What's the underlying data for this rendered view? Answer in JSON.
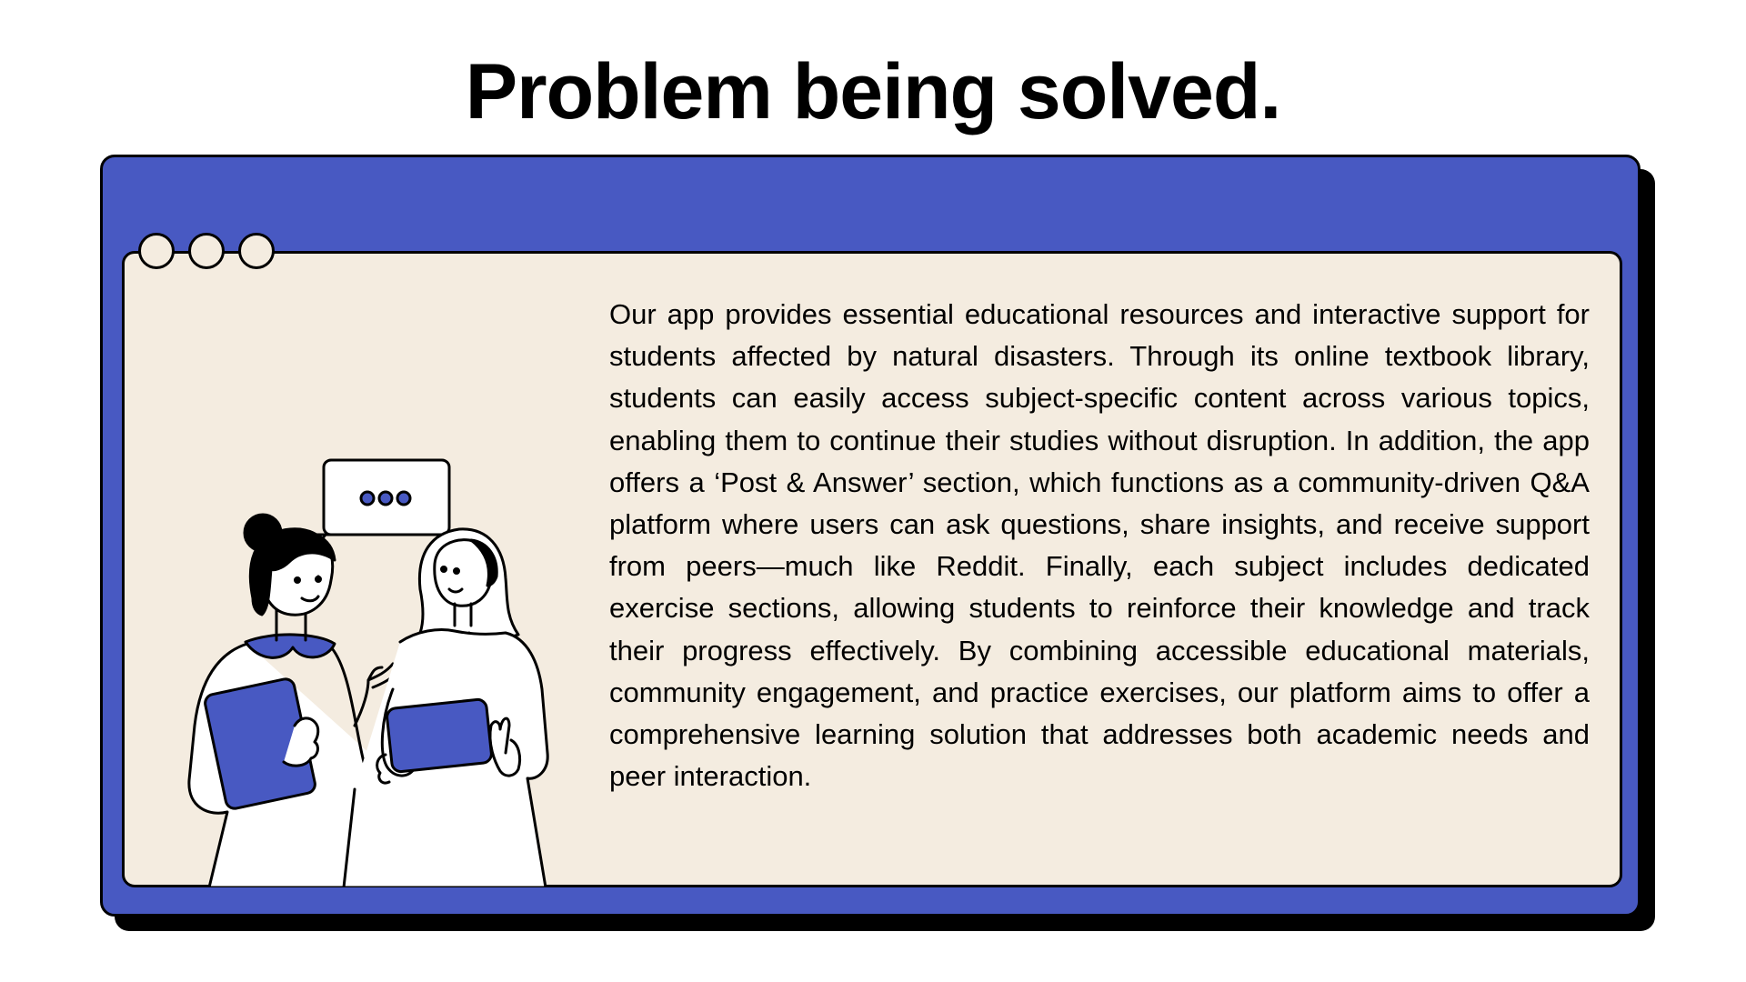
{
  "slide": {
    "title": "Problem being solved.",
    "body": "Our app provides essential educational resources and interactive support for students affected by natural disasters. Through its online textbook library, students can easily access subject-specific content across various topics, enabling them to continue their studies without disruption. In addition, the app offers a ‘Post & Answer’ section, which functions as a community-driven Q&A platform where users can ask questions, share insights, and receive support from peers—much like Reddit. Finally, each subject includes dedicated exercise sections, allowing students to reinforce their knowledge and track their progress effectively. By combining accessible educational materials, community engagement, and practice exercises, our platform aims to offer a comprehensive learning solution that addresses both academic needs and peer interaction."
  },
  "window": {
    "frame_color": "#4859c2",
    "panel_color": "#f4ece0",
    "control_dots": [
      "window-dot-1",
      "window-dot-2",
      "window-dot-3"
    ]
  },
  "illustration": {
    "subject": "two-women-talking-with-tablets",
    "accent_color": "#4859c2"
  }
}
